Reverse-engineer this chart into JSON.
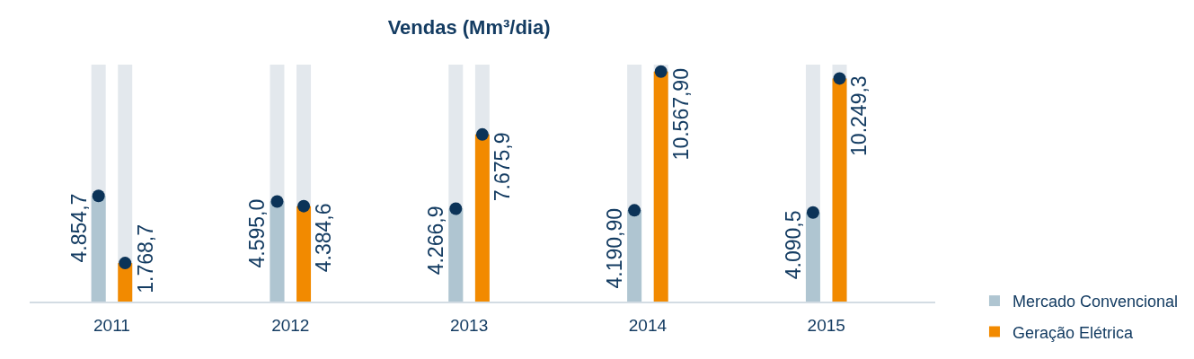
{
  "chart_data": {
    "type": "bar",
    "title": "Vendas (Mm³/dia)",
    "categories": [
      "2011",
      "2012",
      "2013",
      "2014",
      "2015"
    ],
    "series": [
      {
        "name": "Mercado Convencional",
        "color": "#afc5d1",
        "values": [
          4854.7,
          4595.0,
          4266.9,
          4190.9,
          4090.5
        ],
        "value_labels": [
          "4.854,7",
          "4.595,0",
          "4.266,9",
          "4.190,90",
          "4.090,5"
        ]
      },
      {
        "name": "Geração Elétrica",
        "color": "#f28a00",
        "values": [
          1768.7,
          4384.6,
          7675.9,
          10567.9,
          10249.3
        ],
        "value_labels": [
          "1.768,7",
          "4.384,6",
          "7.675,9",
          "10.567,90",
          "10.249,3"
        ]
      },
      {
        "type": "scatter",
        "color": "#0b3358",
        "values": [
          4854.7,
          4595.0,
          4266.9,
          4190.9,
          4090.5
        ]
      },
      {
        "type": "scatter",
        "color": "#0b3358",
        "values": [
          1768.7,
          4384.6,
          7675.9,
          10567.9,
          10249.3
        ]
      }
    ],
    "marker": "circle",
    "legend": "bottom right"
  }
}
